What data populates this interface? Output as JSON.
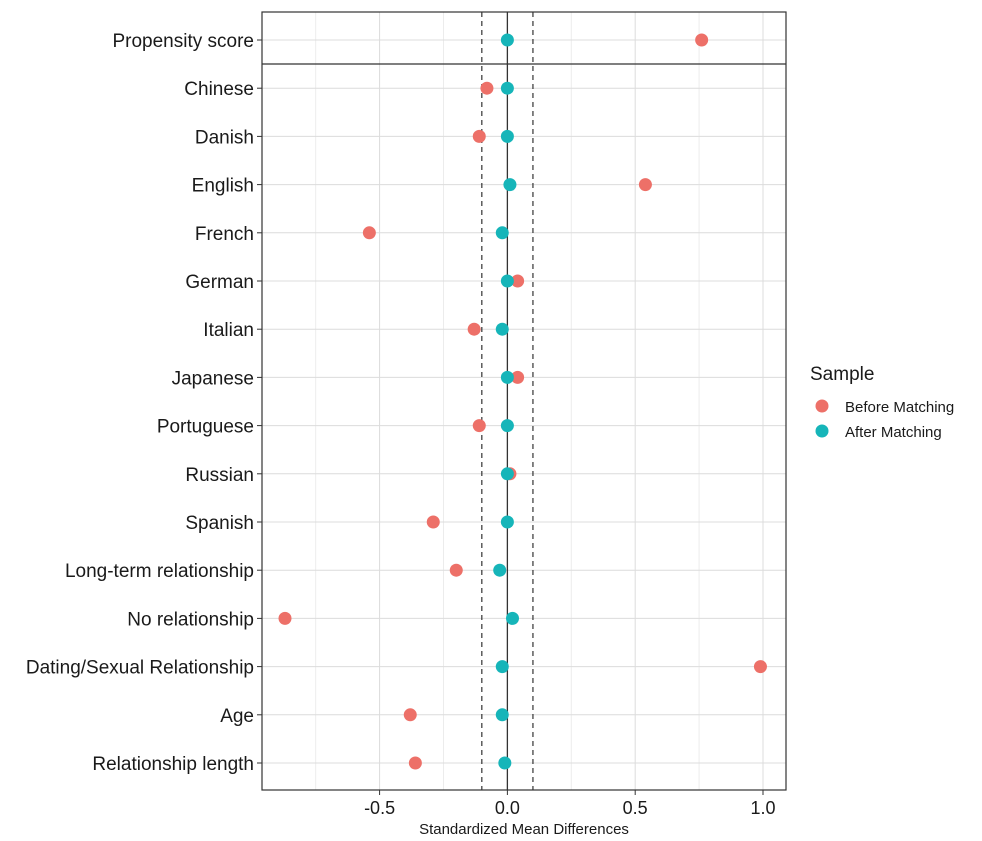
{
  "chart_data": {
    "type": "scatter",
    "xlabel": "Standardized Mean Differences",
    "xlim": [
      -0.96,
      1.09
    ],
    "xticks": [
      -0.5,
      0.0,
      0.5,
      1.0
    ],
    "xtick_labels": [
      "-0.5",
      "0.0",
      "0.5",
      "1.0"
    ],
    "threshold_lines": [
      -0.1,
      0.1
    ],
    "zero_line": 0,
    "grid": true,
    "legend": {
      "title": "Sample",
      "position": "right",
      "entries": [
        "Before Matching",
        "After Matching"
      ]
    },
    "categories": [
      "Propensity score",
      "Chinese",
      "Danish",
      "English",
      "French",
      "German",
      "Italian",
      "Japanese",
      "Portuguese",
      "Russian",
      "Spanish",
      "Long-term relationship",
      "No relationship",
      "Dating/Sexual Relationship",
      "Age",
      "Relationship length"
    ],
    "series": [
      {
        "name": "Before Matching",
        "color": "#ED7068",
        "values": [
          0.76,
          -0.08,
          -0.11,
          0.54,
          -0.54,
          0.04,
          -0.13,
          0.04,
          -0.11,
          0.01,
          -0.29,
          -0.2,
          -0.87,
          0.99,
          -0.38,
          -0.36
        ]
      },
      {
        "name": "After Matching",
        "color": "#16B5B9",
        "values": [
          0.0,
          0.0,
          0.0,
          0.01,
          -0.02,
          0.0,
          -0.02,
          0.0,
          0.0,
          0.0,
          0.0,
          -0.03,
          0.02,
          -0.02,
          -0.02,
          -0.01
        ]
      }
    ]
  }
}
